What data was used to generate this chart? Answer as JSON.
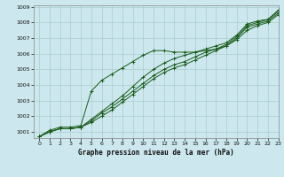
{
  "title": "Graphe pression niveau de la mer (hPa)",
  "bg_color": "#cce8ee",
  "grid_color": "#aacccc",
  "line_color": "#1a5c1a",
  "xlim": [
    -0.5,
    23
  ],
  "ylim": [
    1000.6,
    1009.1
  ],
  "yticks": [
    1001,
    1002,
    1003,
    1004,
    1005,
    1006,
    1007,
    1008,
    1009
  ],
  "xticks": [
    0,
    1,
    2,
    3,
    4,
    5,
    6,
    7,
    8,
    9,
    10,
    11,
    12,
    13,
    14,
    15,
    16,
    17,
    18,
    19,
    20,
    21,
    22,
    23
  ],
  "series": [
    [
      1000.7,
      1001.0,
      1001.2,
      1001.2,
      1001.3,
      1001.6,
      1002.0,
      1002.4,
      1002.9,
      1003.4,
      1003.9,
      1004.4,
      1004.8,
      1005.1,
      1005.3,
      1005.6,
      1005.9,
      1006.2,
      1006.5,
      1007.0,
      1007.7,
      1007.9,
      1008.1,
      1008.6
    ],
    [
      1000.7,
      1001.0,
      1001.2,
      1001.2,
      1001.3,
      1001.7,
      1002.2,
      1002.6,
      1003.1,
      1003.6,
      1004.1,
      1004.6,
      1005.0,
      1005.3,
      1005.5,
      1005.8,
      1006.1,
      1006.3,
      1006.6,
      1007.1,
      1007.8,
      1008.0,
      1008.2,
      1008.7
    ],
    [
      1000.7,
      1001.0,
      1001.2,
      1001.2,
      1001.3,
      1001.8,
      1002.3,
      1002.8,
      1003.3,
      1003.9,
      1004.5,
      1005.0,
      1005.4,
      1005.7,
      1005.9,
      1006.1,
      1006.3,
      1006.5,
      1006.7,
      1007.2,
      1007.9,
      1008.1,
      1008.2,
      1008.8
    ],
    [
      1000.7,
      1001.1,
      1001.3,
      1001.3,
      1001.4,
      1003.6,
      1004.3,
      1004.7,
      1005.1,
      1005.5,
      1005.9,
      1006.2,
      1006.2,
      1006.1,
      1006.1,
      1006.1,
      1006.2,
      1006.3,
      1006.5,
      1006.9,
      1007.5,
      1007.8,
      1008.0,
      1008.5
    ]
  ]
}
